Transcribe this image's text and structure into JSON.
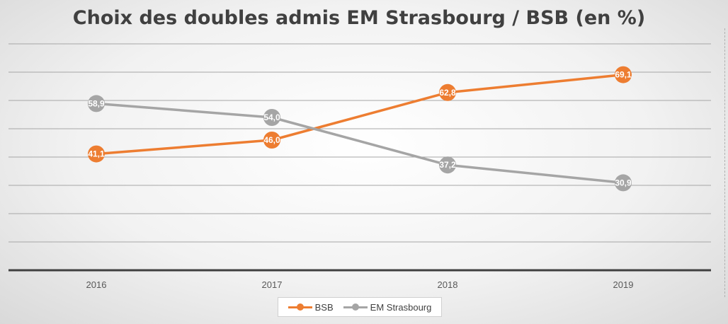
{
  "chart_data": {
    "type": "line",
    "title": "Choix des doubles admis EM Strasbourg / BSB (en %)",
    "x": [
      "2016",
      "2017",
      "2018",
      "2019"
    ],
    "ylim": [
      0,
      80
    ],
    "grid": true,
    "legend_position": "bottom",
    "series": [
      {
        "name": "BSB",
        "color": "#ed7d31",
        "values": [
          41.1,
          46.0,
          62.8,
          69.1
        ],
        "labels": [
          "41,1",
          "46,0",
          "62,8",
          "69,1"
        ]
      },
      {
        "name": "EM Strasbourg",
        "color": "#a5a5a5",
        "values": [
          58.9,
          54.0,
          37.2,
          30.9
        ],
        "labels": [
          "58,9",
          "54,0",
          "37,2",
          "30,9"
        ]
      }
    ]
  }
}
